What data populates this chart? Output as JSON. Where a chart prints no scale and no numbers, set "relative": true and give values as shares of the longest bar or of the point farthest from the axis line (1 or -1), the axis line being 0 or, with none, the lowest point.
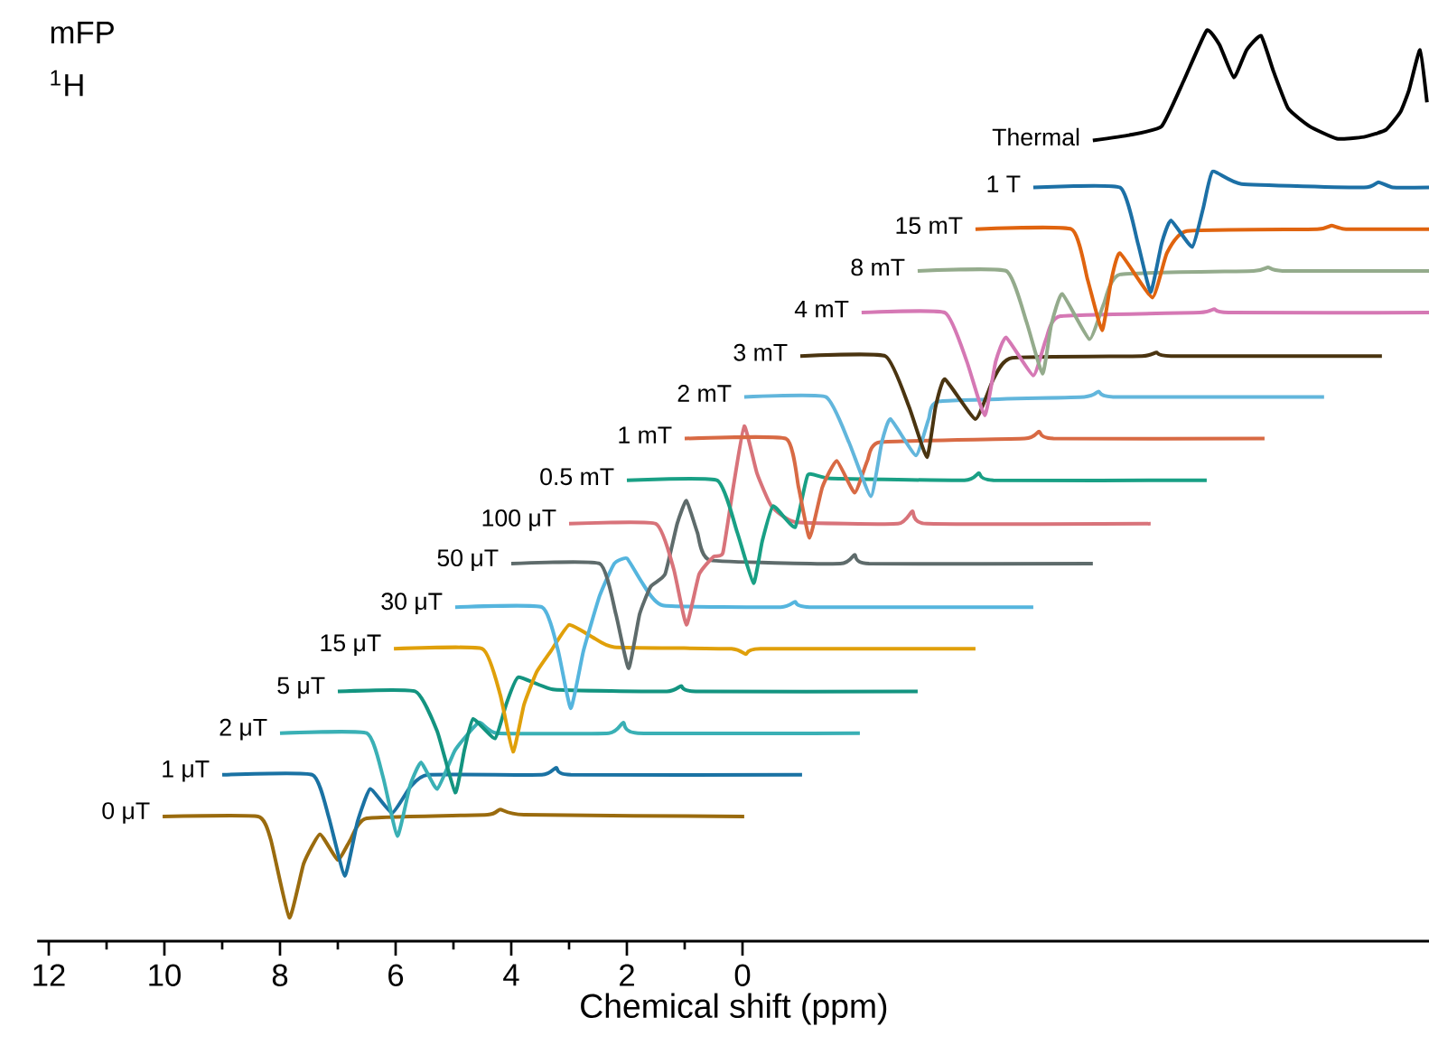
{
  "chart_data": {
    "type": "line",
    "title": "mFP",
    "subtitle": "$^{1}$H",
    "xlabel": "Chemical shift (ppm)",
    "relative": true,
    "marker": "none",
    "xlim": [
      12.2,
      -11.9
    ],
    "xticks": [
      12,
      10,
      8,
      6,
      4,
      2,
      0
    ],
    "series": [
      {
        "name": "0 μT",
        "color": "#9a6b0e",
        "x": [
          10.03,
          8.38,
          8.16,
          7.84,
          7.59,
          7.31,
          7.0,
          6.78,
          6.5,
          4.41,
          4.19,
          3.78,
          -0.03
        ],
        "values": [
          0.114,
          0.114,
          0.088,
          0.0,
          0.061,
          0.094,
          0.065,
          0.088,
          0.112,
          0.116,
          0.122,
          0.116,
          0.114
        ]
      },
      {
        "name": "1 μT",
        "color": "#1a72a3",
        "x": [
          9.0,
          7.44,
          7.16,
          6.88,
          6.66,
          6.44,
          6.06,
          5.75,
          5.44,
          3.47,
          3.22,
          2.97,
          -1.03
        ],
        "values": [
          0.161,
          0.161,
          0.114,
          0.047,
          0.108,
          0.145,
          0.118,
          0.147,
          0.161,
          0.161,
          0.169,
          0.161,
          0.161
        ]
      },
      {
        "name": "2 μT",
        "color": "#3ab0b5",
        "x": [
          8.0,
          6.5,
          6.22,
          5.97,
          5.75,
          5.56,
          5.28,
          4.97,
          4.56,
          4.25,
          2.31,
          2.06,
          1.81,
          -2.03
        ],
        "values": [
          0.208,
          0.208,
          0.159,
          0.092,
          0.149,
          0.175,
          0.145,
          0.189,
          0.22,
          0.208,
          0.208,
          0.22,
          0.208,
          0.208
        ]
      },
      {
        "name": "5 μT",
        "color": "#139480",
        "x": [
          7.0,
          5.66,
          5.28,
          4.97,
          4.81,
          4.66,
          4.28,
          4.09,
          3.88,
          3.25,
          1.31,
          1.06,
          0.81,
          -3.03
        ],
        "values": [
          0.255,
          0.255,
          0.21,
          0.141,
          0.189,
          0.224,
          0.202,
          0.24,
          0.271,
          0.257,
          0.255,
          0.261,
          0.255,
          0.255
        ]
      },
      {
        "name": "15 μT",
        "color": "#e0a00a",
        "x": [
          6.03,
          4.5,
          4.19,
          3.97,
          3.78,
          3.56,
          3.31,
          3.0,
          2.59,
          2.22,
          0.19,
          -0.06,
          -0.31,
          -4.03
        ],
        "values": [
          0.303,
          0.303,
          0.251,
          0.187,
          0.24,
          0.277,
          0.301,
          0.33,
          0.316,
          0.305,
          0.303,
          0.297,
          0.303,
          0.303
        ]
      },
      {
        "name": "30 μT",
        "color": "#55b5de",
        "x": [
          4.97,
          3.47,
          3.19,
          2.97,
          2.75,
          2.47,
          2.22,
          2.0,
          1.75,
          1.38,
          -0.66,
          -0.91,
          -1.16,
          -5.03
        ],
        "values": [
          0.35,
          0.35,
          0.301,
          0.236,
          0.301,
          0.363,
          0.399,
          0.405,
          0.379,
          0.352,
          0.35,
          0.356,
          0.35,
          0.35
        ]
      },
      {
        "name": "50 μT",
        "color": "#5e6b6b",
        "x": [
          4.0,
          2.47,
          2.19,
          1.97,
          1.78,
          1.59,
          1.34,
          1.13,
          0.97,
          0.78,
          0.56,
          -1.69,
          -1.94,
          -2.19,
          -6.06
        ],
        "values": [
          0.399,
          0.399,
          0.342,
          0.281,
          0.342,
          0.373,
          0.387,
          0.444,
          0.47,
          0.434,
          0.403,
          0.399,
          0.409,
          0.399,
          0.399
        ]
      },
      {
        "name": "100 μT",
        "color": "#d8737a",
        "x": [
          3.0,
          1.5,
          1.19,
          0.97,
          0.75,
          0.5,
          0.34,
          0.16,
          -0.03,
          -0.25,
          -0.5,
          -0.91,
          -2.69,
          -2.94,
          -3.19,
          -7.06
        ],
        "values": [
          0.444,
          0.444,
          0.393,
          0.33,
          0.387,
          0.407,
          0.411,
          0.485,
          0.554,
          0.501,
          0.464,
          0.446,
          0.444,
          0.458,
          0.444,
          0.444
        ]
      },
      {
        "name": "0.5 mT",
        "color": "#19a085",
        "x": [
          2.0,
          0.44,
          0.09,
          -0.19,
          -0.34,
          -0.53,
          -0.91,
          -1.13,
          -1.53,
          -3.84,
          -4.09,
          -4.34,
          -8.03
        ],
        "values": [
          0.493,
          0.493,
          0.434,
          0.377,
          0.424,
          0.464,
          0.44,
          0.499,
          0.495,
          0.493,
          0.501,
          0.493,
          0.493
        ]
      },
      {
        "name": "1 mT",
        "color": "#d86a44",
        "x": [
          1.0,
          -0.75,
          -0.97,
          -1.16,
          -1.38,
          -1.63,
          -1.94,
          -2.16,
          -2.38,
          -4.88,
          -5.13,
          -5.38,
          -9.03
        ],
        "values": [
          0.54,
          0.54,
          0.485,
          0.428,
          0.485,
          0.515,
          0.479,
          0.515,
          0.536,
          0.54,
          0.548,
          0.54,
          0.54
        ]
      },
      {
        "name": "2 mT",
        "color": "#62b6dc",
        "x": [
          -0.03,
          -1.44,
          -1.84,
          -2.22,
          -2.41,
          -2.56,
          -3.0,
          -3.22,
          -3.41,
          -5.91,
          -6.16,
          -6.41,
          -10.06
        ],
        "values": [
          0.587,
          0.587,
          0.536,
          0.475,
          0.536,
          0.562,
          0.521,
          0.562,
          0.582,
          0.587,
          0.593,
          0.587,
          0.587
        ]
      },
      {
        "name": "3 mT",
        "color": "#4a3410",
        "x": [
          -1.0,
          -2.47,
          -2.88,
          -3.19,
          -3.34,
          -3.5,
          -4.03,
          -4.34,
          -4.66,
          -6.91,
          -7.16,
          -7.41,
          -11.06
        ],
        "values": [
          0.633,
          0.633,
          0.576,
          0.519,
          0.576,
          0.607,
          0.562,
          0.607,
          0.631,
          0.633,
          0.637,
          0.633,
          0.633
        ]
      },
      {
        "name": "4 mT",
        "color": "#d578b4",
        "x": [
          -2.06,
          -3.5,
          -3.88,
          -4.19,
          -4.38,
          -4.56,
          -5.03,
          -5.25,
          -5.5,
          -7.91,
          -8.16,
          -8.41,
          -11.88
        ],
        "values": [
          0.682,
          0.682,
          0.627,
          0.566,
          0.627,
          0.654,
          0.611,
          0.652,
          0.678,
          0.682,
          0.686,
          0.682,
          0.682
        ]
      },
      {
        "name": "8 mT",
        "color": "#94ab8c",
        "x": [
          -3.03,
          -4.56,
          -4.91,
          -5.19,
          -5.34,
          -5.53,
          -6.0,
          -6.25,
          -6.53,
          -8.84,
          -9.09,
          -9.34,
          -11.88
        ],
        "values": [
          0.729,
          0.729,
          0.672,
          0.613,
          0.668,
          0.703,
          0.652,
          0.692,
          0.725,
          0.729,
          0.733,
          0.729,
          0.729
        ]
      },
      {
        "name": "15 mT",
        "color": "#e0640f",
        "x": [
          -4.03,
          -5.69,
          -5.97,
          -6.22,
          -6.38,
          -6.53,
          -7.09,
          -7.34,
          -7.69,
          -9.94,
          -10.19,
          -10.44,
          -11.88
        ],
        "values": [
          0.776,
          0.776,
          0.719,
          0.662,
          0.719,
          0.749,
          0.699,
          0.749,
          0.774,
          0.776,
          0.78,
          0.776,
          0.776
        ]
      },
      {
        "name": "1 T",
        "color": "#1c70a6",
        "x": [
          -5.03,
          -6.53,
          -6.84,
          -7.06,
          -7.25,
          -7.41,
          -7.78,
          -7.97,
          -8.13,
          -8.63,
          -10.75,
          -11.0,
          -11.25,
          -11.88
        ],
        "values": [
          0.823,
          0.823,
          0.76,
          0.705,
          0.76,
          0.786,
          0.756,
          0.8,
          0.841,
          0.827,
          0.823,
          0.829,
          0.823,
          0.823
        ]
      },
      {
        "name": "Thermal",
        "color": "#000000",
        "x": [
          -6.06,
          -6.69,
          -7.25,
          -7.63,
          -8.03,
          -8.25,
          -8.5,
          -8.72,
          -8.97,
          -9.19,
          -9.44,
          -9.81,
          -10.28,
          -10.75,
          -11.13,
          -11.38,
          -11.53,
          -11.72,
          -11.84
        ],
        "values": [
          0.876,
          0.882,
          0.892,
          0.943,
          1.0,
          0.984,
          0.947,
          0.978,
          0.994,
          0.953,
          0.912,
          0.892,
          0.878,
          0.88,
          0.888,
          0.908,
          0.933,
          0.978,
          0.919
        ]
      }
    ]
  }
}
